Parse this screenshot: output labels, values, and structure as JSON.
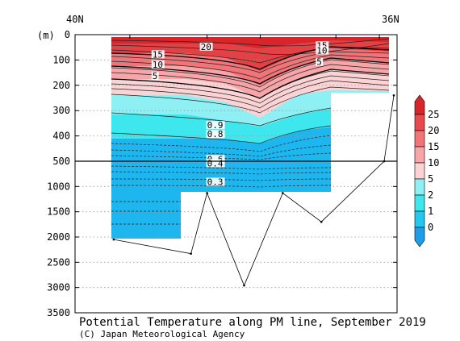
{
  "chart_data": {
    "type": "contour-section",
    "title": "Potential Temperature along PM line, September 2019",
    "credit": "(C) Japan Meteorological Agency",
    "x_labels": {
      "left": "40N",
      "right": "36N"
    },
    "y_unit": "(m)",
    "y_ticks_upper": [
      "0",
      "100",
      "200",
      "300",
      "400",
      "500"
    ],
    "y_ticks_lower": [
      "1000",
      "1500",
      "2000",
      "2500",
      "3000",
      "3500"
    ],
    "upper_depth_range": [
      0,
      500
    ],
    "lower_depth_range": [
      500,
      3500
    ],
    "station_positions_0to1": [
      0.12,
      0.36,
      0.525,
      0.76,
      0.895
    ],
    "colorbar": {
      "levels": [
        "25",
        "20",
        "15",
        "10",
        "5",
        "2",
        "1",
        "0"
      ],
      "colors": [
        "#d8252b",
        "#e9494d",
        "#f07478",
        "#f7a5a8",
        "#fbd3d5",
        "#8ff0f4",
        "#3ee6ee",
        "#22c8f0",
        "#1e9de8"
      ]
    },
    "contour_labels": [
      {
        "text": "20",
        "depth": 60,
        "xf": 0.39
      },
      {
        "text": "15",
        "depth": 90,
        "xf": 0.24
      },
      {
        "text": "10",
        "depth": 130,
        "xf": 0.24
      },
      {
        "text": "5",
        "depth": 175,
        "xf": 0.24
      },
      {
        "text": "15",
        "depth": 55,
        "xf": 0.75
      },
      {
        "text": "10",
        "depth": 75,
        "xf": 0.75
      },
      {
        "text": "5",
        "depth": 120,
        "xf": 0.75
      },
      {
        "text": "0.9",
        "depth": 370,
        "xf": 0.41
      },
      {
        "text": "0.8",
        "depth": 405,
        "xf": 0.41
      },
      {
        "text": "0.6",
        "depth": 520,
        "xf": 0.41
      },
      {
        "text": "0.4",
        "depth": 600,
        "xf": 0.41
      },
      {
        "text": "0.3",
        "depth": 970,
        "xf": 0.41
      }
    ],
    "bottom_depth_profile": [
      {
        "xf": 0.12,
        "depth": 2050
      },
      {
        "xf": 0.36,
        "depth": 2330
      },
      {
        "xf": 0.41,
        "depth": 1130
      },
      {
        "xf": 0.525,
        "depth": 2960
      },
      {
        "xf": 0.645,
        "depth": 1130
      },
      {
        "xf": 0.765,
        "depth": 1700
      },
      {
        "xf": 0.96,
        "depth": 500
      },
      {
        "xf": 0.99,
        "depth": 240
      }
    ]
  }
}
